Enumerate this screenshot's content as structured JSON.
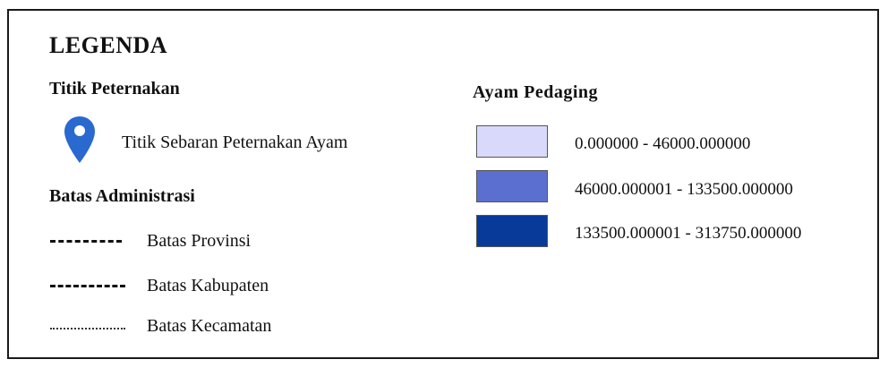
{
  "legend": {
    "title": "LEGENDA",
    "titik": {
      "heading": "Titik Peternakan",
      "icon": "map-pin-icon",
      "icon_color": "#2969d0",
      "label": "Titik Sebaran Peternakan Ayam"
    },
    "batas": {
      "heading": "Batas Administrasi",
      "items": [
        {
          "label": "Batas Provinsi",
          "line_style": "dashed-long"
        },
        {
          "label": "Batas Kabupaten",
          "line_style": "dashed-short"
        },
        {
          "label": "Batas Kecamatan",
          "line_style": "dotted"
        }
      ]
    },
    "ayam": {
      "heading": "Ayam Pedaging",
      "classes": [
        {
          "label": "0.000000 - 46000.000000",
          "color": "#d9d9fb"
        },
        {
          "label": "46000.000001 - 133500.000000",
          "color": "#5b6fd0"
        },
        {
          "label": "133500.000001 - 313750.000000",
          "color": "#073a99"
        }
      ]
    }
  }
}
